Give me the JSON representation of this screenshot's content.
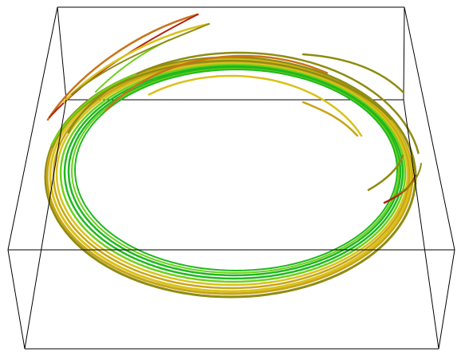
{
  "scene": {
    "type": "3d-streamline-visualization",
    "background": "#ffffff",
    "bounding_box": {
      "shown": true,
      "style": "wireframe",
      "edge_color": "#000000"
    },
    "strand_palette": {
      "green": "#1fb81f",
      "lime": "#6fcf1a",
      "yellow": "#d9c21a",
      "gold": "#c8a517",
      "olive": "#8e8c12",
      "orange": "#c8741a",
      "red": "#b3200f"
    },
    "strand_count": 15,
    "description": ""
  }
}
